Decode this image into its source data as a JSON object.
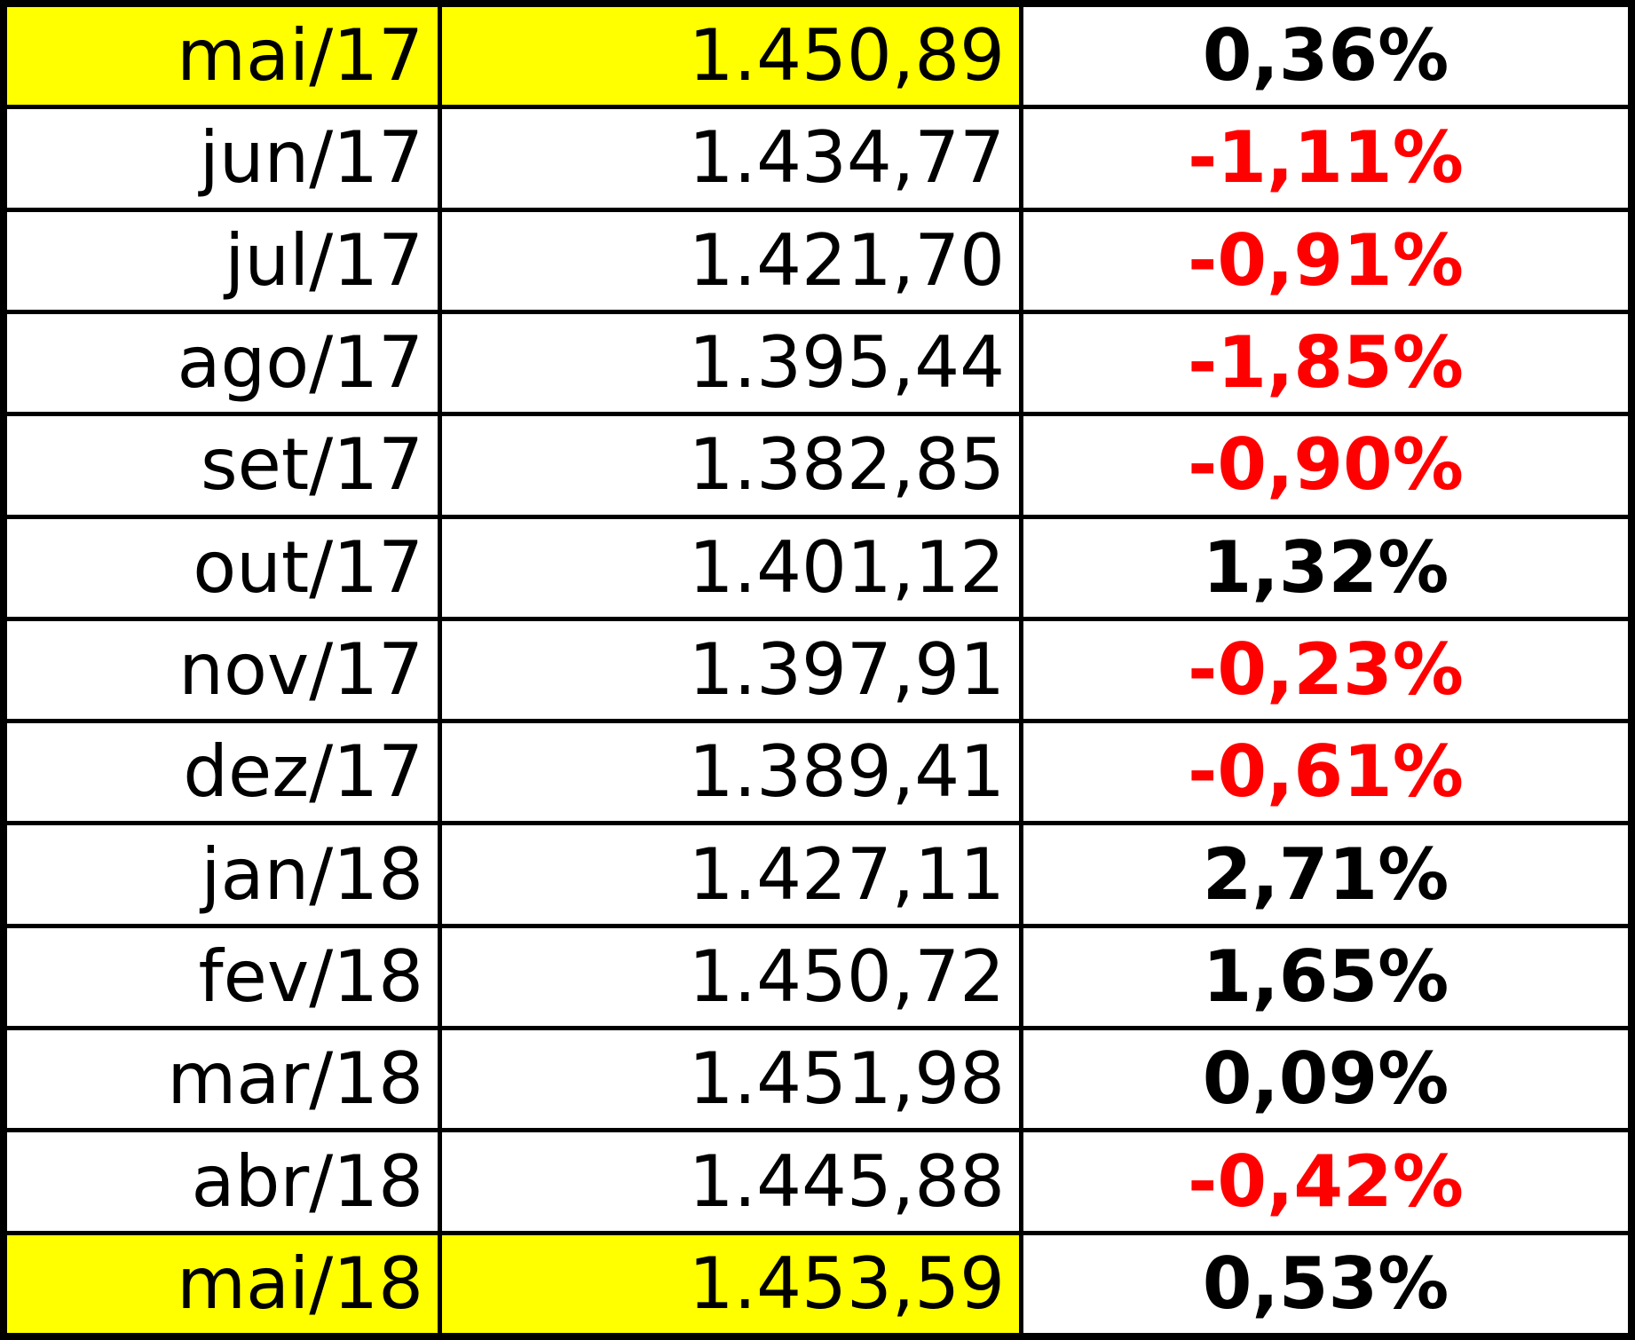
{
  "table": {
    "rows": [
      [
        "mai/17",
        "1.450,89",
        "0,36%"
      ],
      [
        "jun/17",
        "1.434,77",
        "-1,11%"
      ],
      [
        "jul/17",
        "1.421,70",
        "-0,91%"
      ],
      [
        "ago/17",
        "1.395,44",
        "-1,85%"
      ],
      [
        "set/17",
        "1.382,85",
        "-0,90%"
      ],
      [
        "out/17",
        "1.401,12",
        "1,32%"
      ],
      [
        "nov/17",
        "1.397,91",
        "-0,23%"
      ],
      [
        "dez/17",
        "1.389,41",
        "-0,61%"
      ],
      [
        "jan/18",
        "1.427,11",
        "2,71%"
      ],
      [
        "fev/18",
        "1.450,72",
        "1,65%"
      ],
      [
        "mar/18",
        "1.451,98",
        "0,09%"
      ],
      [
        "abr/18",
        "1.445,88",
        "-0,42%"
      ],
      [
        "mai/18",
        "1.453,59",
        "0,53%"
      ]
    ]
  }
}
